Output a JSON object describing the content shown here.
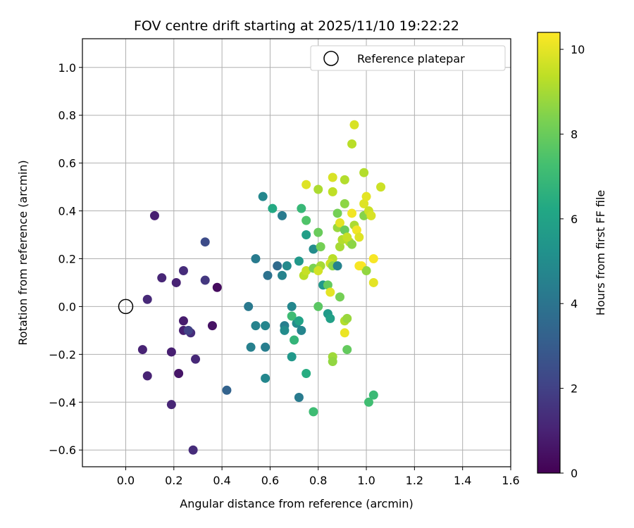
{
  "chart_data": {
    "type": "scatter",
    "title": "FOV centre drift starting at 2025/11/10 19:22:22",
    "xlabel": "Angular distance from reference (arcmin)",
    "ylabel": "Rotation from reference (arcmin)",
    "xlim": [
      -0.18,
      1.6
    ],
    "ylim": [
      -0.67,
      1.12
    ],
    "xticks": [
      "0.0",
      "0.2",
      "0.4",
      "0.6",
      "0.8",
      "1.0",
      "1.2",
      "1.4",
      "1.6"
    ],
    "yticks": [
      "−0.6",
      "−0.4",
      "−0.2",
      "0.0",
      "0.2",
      "0.4",
      "0.6",
      "0.8",
      "1.0"
    ],
    "grid": true,
    "legend": {
      "position": "top-right",
      "label": "Reference platepar"
    },
    "reference_point": {
      "x": 0.0,
      "y": 0.0
    },
    "colorbar": {
      "label": "Hours from first FF file",
      "range": [
        0,
        10.4
      ],
      "ticks": [
        "0",
        "2",
        "4",
        "6",
        "8",
        "10"
      ],
      "colormap": "viridis"
    },
    "points": [
      {
        "x": 0.28,
        "y": -0.6,
        "h": 1.3
      },
      {
        "x": 0.19,
        "y": -0.41,
        "h": 1.1
      },
      {
        "x": 0.09,
        "y": -0.29,
        "h": 1.0
      },
      {
        "x": 0.07,
        "y": -0.18,
        "h": 1.0
      },
      {
        "x": 0.19,
        "y": -0.19,
        "h": 0.9
      },
      {
        "x": 0.22,
        "y": -0.28,
        "h": 0.6
      },
      {
        "x": 0.29,
        "y": -0.22,
        "h": 1.2
      },
      {
        "x": 0.24,
        "y": -0.1,
        "h": 0.9
      },
      {
        "x": 0.27,
        "y": -0.11,
        "h": 1.3
      },
      {
        "x": 0.26,
        "y": -0.1,
        "h": 2.0
      },
      {
        "x": 0.24,
        "y": -0.06,
        "h": 0.8
      },
      {
        "x": 0.36,
        "y": -0.08,
        "h": 0.5
      },
      {
        "x": 0.09,
        "y": 0.03,
        "h": 1.2
      },
      {
        "x": 0.15,
        "y": 0.12,
        "h": 1.1
      },
      {
        "x": 0.21,
        "y": 0.1,
        "h": 1.0
      },
      {
        "x": 0.24,
        "y": 0.15,
        "h": 1.3
      },
      {
        "x": 0.33,
        "y": 0.11,
        "h": 1.7
      },
      {
        "x": 0.38,
        "y": 0.08,
        "h": 0.3
      },
      {
        "x": 0.12,
        "y": 0.38,
        "h": 0.9
      },
      {
        "x": 0.33,
        "y": 0.27,
        "h": 2.4
      },
      {
        "x": 0.42,
        "y": -0.35,
        "h": 3.3
      },
      {
        "x": 0.51,
        "y": 0.0,
        "h": 4.2
      },
      {
        "x": 0.52,
        "y": -0.17,
        "h": 4.5
      },
      {
        "x": 0.54,
        "y": -0.08,
        "h": 4.6
      },
      {
        "x": 0.58,
        "y": -0.08,
        "h": 4.7
      },
      {
        "x": 0.58,
        "y": -0.17,
        "h": 4.4
      },
      {
        "x": 0.58,
        "y": -0.3,
        "h": 4.8
      },
      {
        "x": 0.54,
        "y": 0.2,
        "h": 4.3
      },
      {
        "x": 0.59,
        "y": 0.13,
        "h": 3.9
      },
      {
        "x": 0.57,
        "y": 0.46,
        "h": 4.8
      },
      {
        "x": 0.61,
        "y": 0.41,
        "h": 6.3
      },
      {
        "x": 0.63,
        "y": 0.17,
        "h": 3.6
      },
      {
        "x": 0.65,
        "y": 0.38,
        "h": 4.3
      },
      {
        "x": 0.65,
        "y": 0.13,
        "h": 4.6
      },
      {
        "x": 0.67,
        "y": 0.17,
        "h": 4.9
      },
      {
        "x": 0.66,
        "y": -0.08,
        "h": 4.4
      },
      {
        "x": 0.66,
        "y": -0.1,
        "h": 5.0
      },
      {
        "x": 0.69,
        "y": -0.21,
        "h": 5.5
      },
      {
        "x": 0.69,
        "y": 0.0,
        "h": 4.8
      },
      {
        "x": 0.71,
        "y": -0.07,
        "h": 5.0
      },
      {
        "x": 0.7,
        "y": -0.14,
        "h": 6.8
      },
      {
        "x": 0.69,
        "y": -0.04,
        "h": 7.1
      },
      {
        "x": 0.72,
        "y": -0.06,
        "h": 6.0
      },
      {
        "x": 0.73,
        "y": -0.1,
        "h": 4.7
      },
      {
        "x": 0.72,
        "y": -0.38,
        "h": 4.3
      },
      {
        "x": 0.75,
        "y": -0.28,
        "h": 6.4
      },
      {
        "x": 0.78,
        "y": -0.44,
        "h": 7.1
      },
      {
        "x": 0.72,
        "y": 0.19,
        "h": 5.5
      },
      {
        "x": 0.73,
        "y": 0.41,
        "h": 6.9
      },
      {
        "x": 0.75,
        "y": 0.3,
        "h": 5.8
      },
      {
        "x": 0.75,
        "y": 0.36,
        "h": 7.5
      },
      {
        "x": 0.74,
        "y": 0.13,
        "h": 9.3
      },
      {
        "x": 0.75,
        "y": 0.15,
        "h": 9.5
      },
      {
        "x": 0.75,
        "y": 0.51,
        "h": 9.9
      },
      {
        "x": 0.78,
        "y": 0.24,
        "h": 5.0
      },
      {
        "x": 0.78,
        "y": 0.16,
        "h": 8.3
      },
      {
        "x": 0.8,
        "y": 0.31,
        "h": 8.0
      },
      {
        "x": 0.81,
        "y": 0.25,
        "h": 8.2
      },
      {
        "x": 0.8,
        "y": 0.49,
        "h": 9.1
      },
      {
        "x": 0.81,
        "y": 0.17,
        "h": 9.0
      },
      {
        "x": 0.8,
        "y": 0.15,
        "h": 9.7
      },
      {
        "x": 0.82,
        "y": 0.09,
        "h": 5.5
      },
      {
        "x": 0.8,
        "y": 0.0,
        "h": 7.7
      },
      {
        "x": 0.84,
        "y": 0.09,
        "h": 7.9
      },
      {
        "x": 0.84,
        "y": -0.03,
        "h": 5.6
      },
      {
        "x": 0.85,
        "y": -0.05,
        "h": 5.9
      },
      {
        "x": 0.85,
        "y": 0.06,
        "h": 10.0
      },
      {
        "x": 0.86,
        "y": 0.2,
        "h": 9.3
      },
      {
        "x": 0.85,
        "y": 0.18,
        "h": 9.6
      },
      {
        "x": 0.86,
        "y": 0.17,
        "h": 8.6
      },
      {
        "x": 0.86,
        "y": 0.54,
        "h": 9.8
      },
      {
        "x": 0.86,
        "y": 0.48,
        "h": 9.4
      },
      {
        "x": 0.86,
        "y": -0.21,
        "h": 8.9
      },
      {
        "x": 0.86,
        "y": -0.23,
        "h": 8.7
      },
      {
        "x": 0.88,
        "y": 0.17,
        "h": 4.6
      },
      {
        "x": 0.88,
        "y": 0.33,
        "h": 8.8
      },
      {
        "x": 0.88,
        "y": 0.39,
        "h": 8.2
      },
      {
        "x": 0.89,
        "y": 0.04,
        "h": 8.2
      },
      {
        "x": 0.89,
        "y": 0.25,
        "h": 9.0
      },
      {
        "x": 0.9,
        "y": 0.28,
        "h": 9.2
      },
      {
        "x": 0.89,
        "y": 0.35,
        "h": 10.0
      },
      {
        "x": 0.91,
        "y": 0.53,
        "h": 9.2
      },
      {
        "x": 0.91,
        "y": 0.43,
        "h": 8.6
      },
      {
        "x": 0.91,
        "y": 0.32,
        "h": 8.0
      },
      {
        "x": 0.91,
        "y": -0.06,
        "h": 9.2
      },
      {
        "x": 0.92,
        "y": -0.05,
        "h": 8.8
      },
      {
        "x": 0.91,
        "y": -0.11,
        "h": 10.1
      },
      {
        "x": 0.92,
        "y": -0.18,
        "h": 7.9
      },
      {
        "x": 0.93,
        "y": 0.27,
        "h": 9.3
      },
      {
        "x": 0.94,
        "y": 0.26,
        "h": 8.6
      },
      {
        "x": 0.94,
        "y": 0.39,
        "h": 10.2
      },
      {
        "x": 0.94,
        "y": 0.68,
        "h": 9.3
      },
      {
        "x": 0.95,
        "y": 0.76,
        "h": 9.8
      },
      {
        "x": 0.95,
        "y": 0.34,
        "h": 9.1
      },
      {
        "x": 0.96,
        "y": 0.32,
        "h": 10.2
      },
      {
        "x": 0.97,
        "y": 0.29,
        "h": 9.9
      },
      {
        "x": 0.98,
        "y": 0.17,
        "h": 10.4
      },
      {
        "x": 0.99,
        "y": 0.38,
        "h": 8.5
      },
      {
        "x": 0.99,
        "y": 0.43,
        "h": 9.9
      },
      {
        "x": 0.99,
        "y": 0.56,
        "h": 9.2
      },
      {
        "x": 1.0,
        "y": 0.46,
        "h": 10.0
      },
      {
        "x": 1.0,
        "y": 0.15,
        "h": 8.7
      },
      {
        "x": 1.01,
        "y": -0.4,
        "h": 7.2
      },
      {
        "x": 1.01,
        "y": 0.4,
        "h": 9.6
      },
      {
        "x": 1.02,
        "y": 0.38,
        "h": 9.8
      },
      {
        "x": 1.03,
        "y": 0.2,
        "h": 10.3
      },
      {
        "x": 1.03,
        "y": 0.1,
        "h": 10.0
      },
      {
        "x": 1.03,
        "y": -0.37,
        "h": 7.0
      },
      {
        "x": 1.06,
        "y": 0.5,
        "h": 9.6
      },
      {
        "x": 0.92,
        "y": 0.29,
        "h": 9.5
      },
      {
        "x": 0.97,
        "y": 0.17,
        "h": 10.3
      }
    ]
  }
}
